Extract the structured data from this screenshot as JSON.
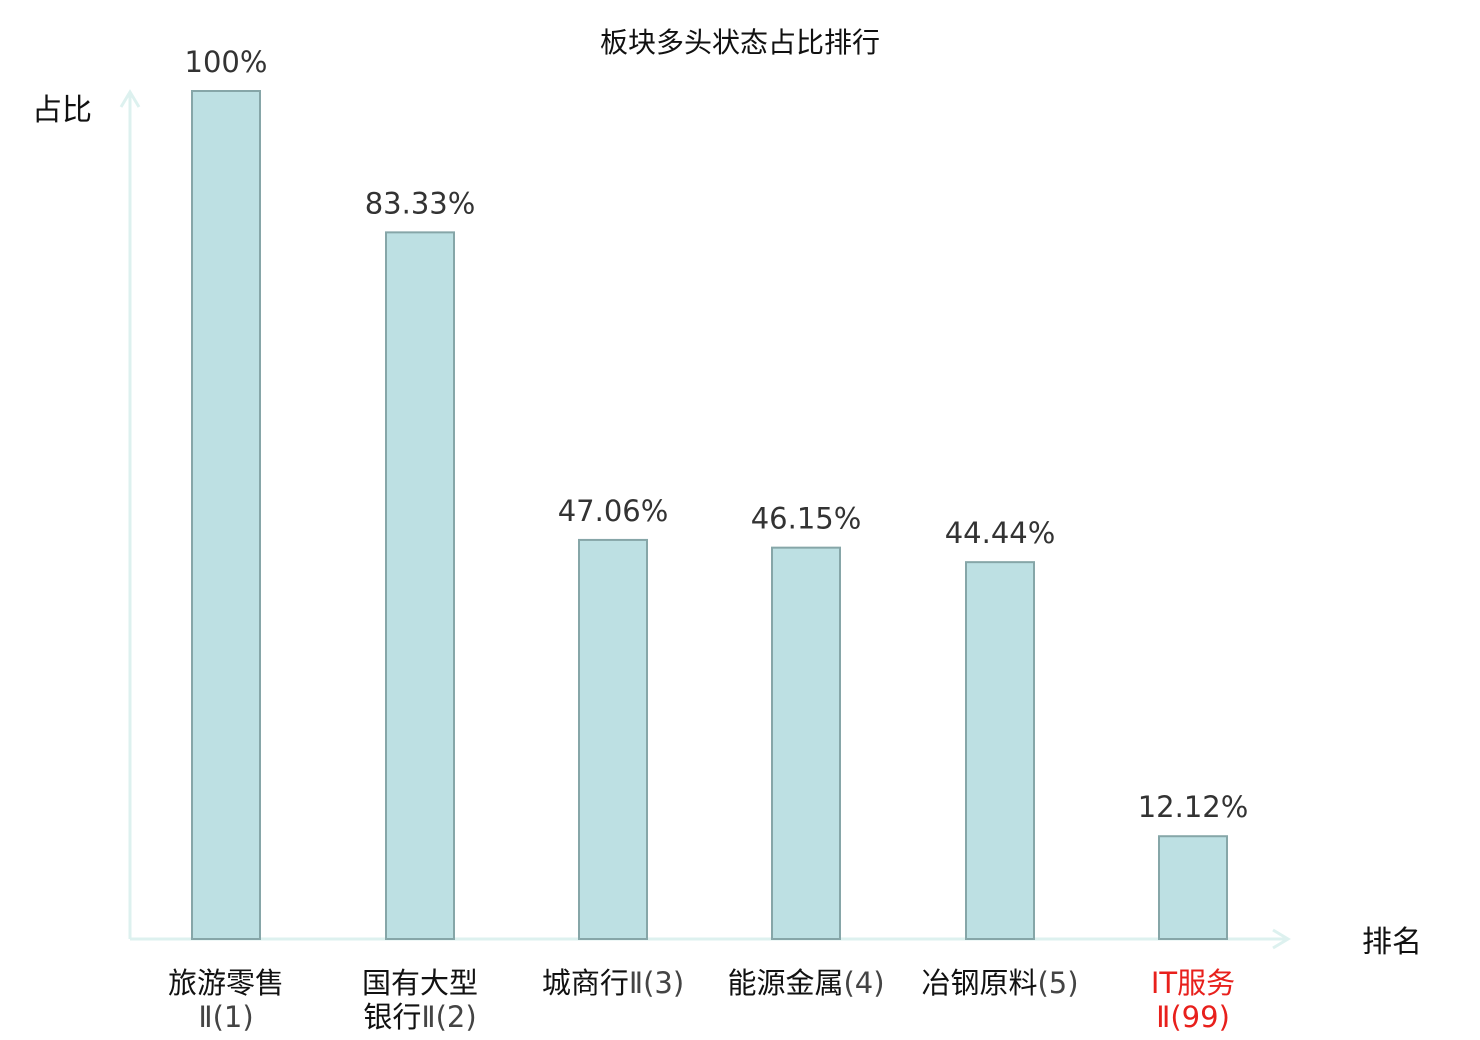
{
  "chart_data": {
    "type": "bar",
    "title": "板块多头状态占比排行",
    "ylabel": "占比",
    "xlabel": "排名",
    "ylim": [
      0,
      100
    ],
    "grid": false,
    "legend": "none",
    "categories": [
      {
        "name": "旅游零售",
        "suffix": "Ⅱ",
        "rank": "(1)",
        "value": 100,
        "label": "100%",
        "highlight": false
      },
      {
        "name": "国有大型",
        "name2": "银行",
        "suffix": "Ⅱ",
        "rank": "(2)",
        "value": 83.33,
        "label": "83.33%",
        "highlight": false
      },
      {
        "name": "城商行",
        "suffix": "Ⅱ",
        "rank": "(3)",
        "value": 47.06,
        "label": "47.06%",
        "highlight": false
      },
      {
        "name": "能源金属",
        "suffix": "",
        "rank": "(4)",
        "value": 46.15,
        "label": "46.15%",
        "highlight": false
      },
      {
        "name": "冶钢原料",
        "suffix": "",
        "rank": "(5)",
        "value": 44.44,
        "label": "44.44%",
        "highlight": false
      },
      {
        "name": "IT服务",
        "suffix": "Ⅱ",
        "rank": "(99)",
        "value": 12.12,
        "label": "12.12%",
        "highlight": true
      }
    ],
    "colors": {
      "bar_fill": "#bde0e3",
      "bar_stroke": "#86a6a8",
      "axis": "#ddf1ef",
      "highlight": "#e8201c",
      "text": "#111111",
      "rank_text": "#444444"
    }
  }
}
